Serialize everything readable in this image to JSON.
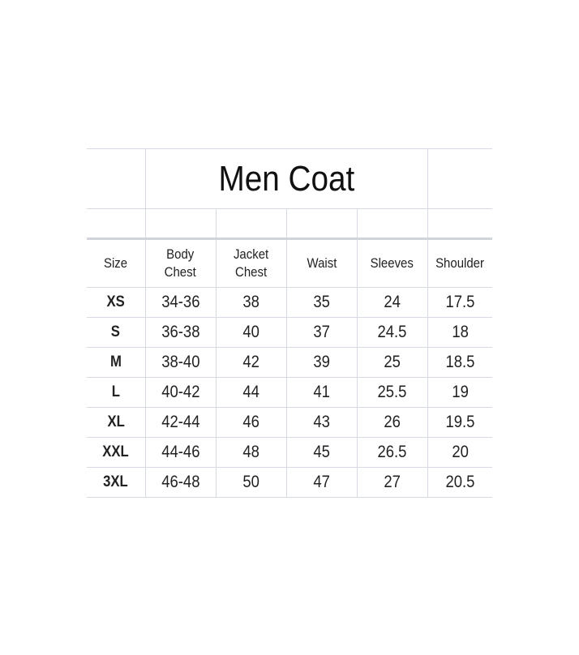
{
  "title": "Men Coat",
  "headers": [
    "Size",
    "Body\nChest",
    "Jacket\nChest",
    "Waist",
    "Sleeves",
    "Shoulder"
  ],
  "header_lines": [
    [
      "Size"
    ],
    [
      "Body",
      "Chest"
    ],
    [
      "Jacket",
      "Chest"
    ],
    [
      "Waist"
    ],
    [
      "Sleeves"
    ],
    [
      "Shoulder"
    ]
  ],
  "rows": [
    [
      "XS",
      "34-36",
      "38",
      "35",
      "24",
      "17.5"
    ],
    [
      "S",
      "36-38",
      "40",
      "37",
      "24.5",
      "18"
    ],
    [
      "M",
      "38-40",
      "42",
      "39",
      "25",
      "18.5"
    ],
    [
      "L",
      "40-42",
      "44",
      "41",
      "25.5",
      "19"
    ],
    [
      "XL",
      "42-44",
      "46",
      "43",
      "26",
      "19.5"
    ],
    [
      "XXL",
      "44-46",
      "48",
      "45",
      "26.5",
      "20"
    ],
    [
      "3XL",
      "46-48",
      "50",
      "47",
      "27",
      "20.5"
    ]
  ],
  "colors": {
    "grid": "#d6dbe3",
    "text": "#222222"
  }
}
